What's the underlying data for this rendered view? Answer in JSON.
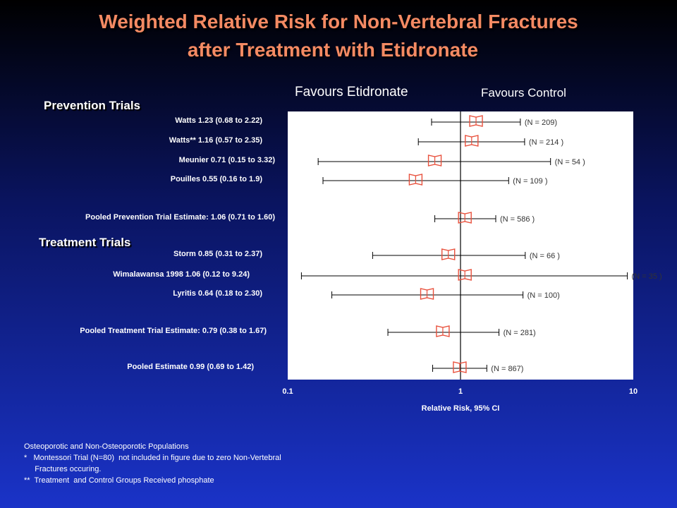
{
  "title": {
    "line1": "Weighted Relative Risk for Non-Vertebral Fractures",
    "line2": "after Treatment with Etidronate"
  },
  "favours": {
    "left": "Favours Etidronate",
    "right": "Favours Control"
  },
  "sections": {
    "prevention": "Prevention Trials",
    "treatment": "Treatment Trials"
  },
  "colors": {
    "marker": "#e8503c",
    "plot_bg": "#ffffff",
    "title": "#f48a63"
  },
  "chart_data": {
    "type": "forest",
    "x_scale": "log",
    "xlim": [
      0.1,
      10
    ],
    "xticks": [
      "0.1",
      "1",
      "10"
    ],
    "xlabel": "Relative Risk, 95% CI",
    "reference_line": 1,
    "rows": [
      {
        "label": "Watts 1.23 (0.68 to 2.22)",
        "rr": 1.23,
        "lo": 0.68,
        "hi": 2.22,
        "n": "(N = 209)"
      },
      {
        "label": "Watts** 1.16 (0.57 to 2.35)",
        "rr": 1.16,
        "lo": 0.57,
        "hi": 2.35,
        "n": "(N = 214 )"
      },
      {
        "label": "Meunier 0.71 (0.15 to 3.32)",
        "rr": 0.71,
        "lo": 0.15,
        "hi": 3.32,
        "n": "(N = 54 )"
      },
      {
        "label": "Pouilles 0.55 (0.16 to 1.9)",
        "rr": 0.55,
        "lo": 0.16,
        "hi": 1.9,
        "n": "(N = 109 )"
      },
      {
        "label": "Pooled Prevention Trial Estimate: 1.06 (0.71 to 1.60)",
        "rr": 1.06,
        "lo": 0.71,
        "hi": 1.6,
        "n": "(N = 586  )"
      },
      {
        "label": "Storm 0.85 (0.31 to 2.37)",
        "rr": 0.85,
        "lo": 0.31,
        "hi": 2.37,
        "n": "(N = 66 )"
      },
      {
        "label": "Wimalawansa 1998 1.06 (0.12 to 9.24)",
        "rr": 1.06,
        "lo": 0.12,
        "hi": 9.24,
        "n": "(N = 35 )"
      },
      {
        "label": "Lyritis 0.64 (0.18 to 2.30)",
        "rr": 0.64,
        "lo": 0.18,
        "hi": 2.3,
        "n": "(N = 100)"
      },
      {
        "label": "Pooled Treatment Trial Estimate: 0.79 (0.38 to 1.67)",
        "rr": 0.79,
        "lo": 0.38,
        "hi": 1.67,
        "n": "(N = 281)"
      },
      {
        "label": "Pooled Estimate 0.99 (0.69 to 1.42)",
        "rr": 0.99,
        "lo": 0.69,
        "hi": 1.42,
        "n": "(N = 867)"
      }
    ]
  },
  "footnotes": [
    "Osteoporotic and Non-Osteoporotic Populations",
    "*   Montessori Trial (N=80)  not included in figure due to zero Non-Vertebral",
    "     Fractures occuring.",
    "**  Treatment  and Control Groups Received phosphate"
  ]
}
